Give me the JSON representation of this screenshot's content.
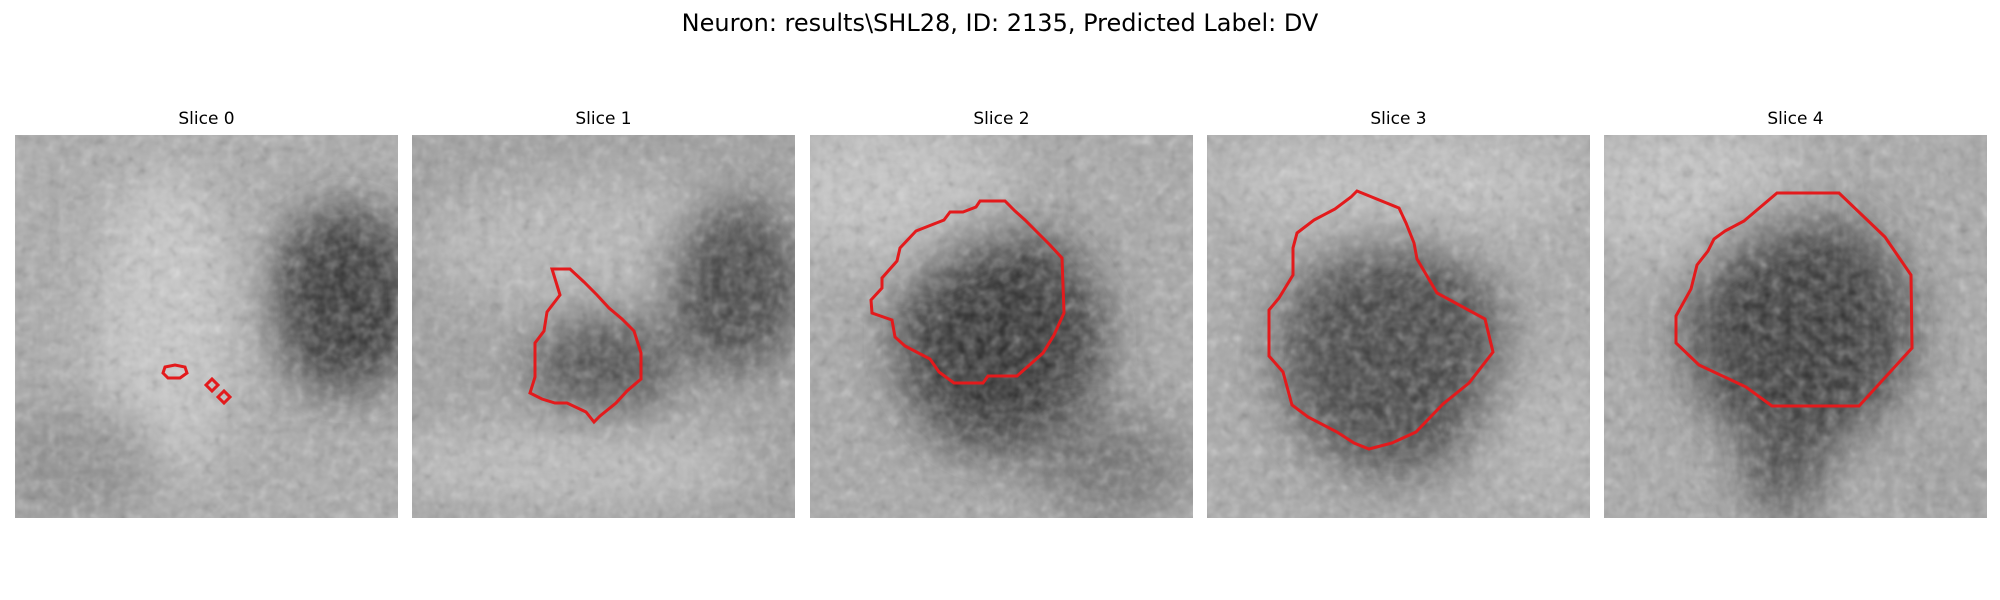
{
  "figure": {
    "title": "Neuron: results\\SHL28, ID: 2135, Predicted Label: DV",
    "contour_color": "#e31a1c"
  },
  "panels": [
    {
      "title": "Slice 0"
    },
    {
      "title": "Slice 1"
    },
    {
      "title": "Slice 2"
    },
    {
      "title": "Slice 3"
    },
    {
      "title": "Slice 4"
    }
  ]
}
